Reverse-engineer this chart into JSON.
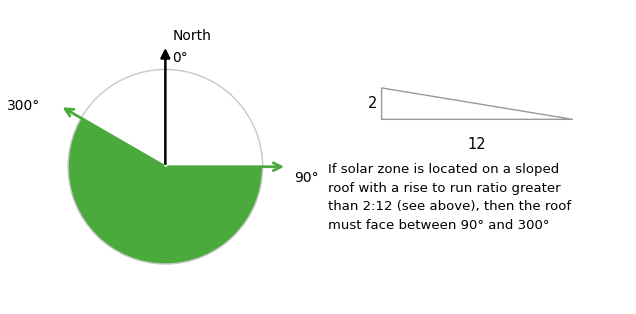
{
  "circle_color": "#c8c8c8",
  "fill_color": "#4aaa3c",
  "north_arrow_color": "#000000",
  "green_arrow_color": "#4aaa3c",
  "north_label": "North",
  "degree_0": "0°",
  "degree_90": "90°",
  "degree_300": "300°",
  "triangle_label_rise": "2",
  "triangle_label_run": "12",
  "description": "If solar zone is located on a sloped\nroof with a rise to run ratio greater\nthan 2:12 (see above), then the roof\nmust face between 90° and 300°",
  "bg_color": "#ffffff",
  "font_size_labels": 10,
  "font_size_desc": 9.5
}
